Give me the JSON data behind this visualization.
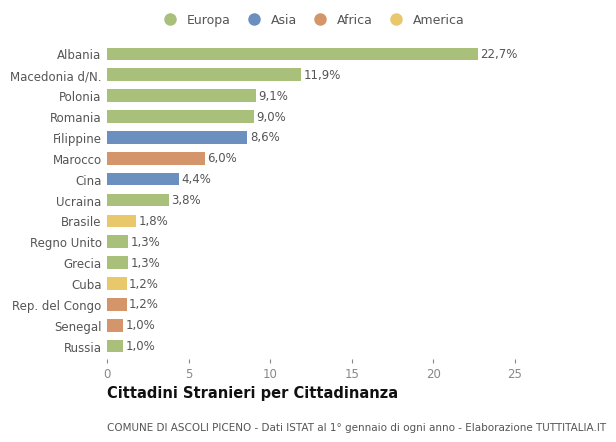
{
  "countries": [
    "Albania",
    "Macedonia d/N.",
    "Polonia",
    "Romania",
    "Filippine",
    "Marocco",
    "Cina",
    "Ucraina",
    "Brasile",
    "Regno Unito",
    "Grecia",
    "Cuba",
    "Rep. del Congo",
    "Senegal",
    "Russia"
  ],
  "values": [
    22.7,
    11.9,
    9.1,
    9.0,
    8.6,
    6.0,
    4.4,
    3.8,
    1.8,
    1.3,
    1.3,
    1.2,
    1.2,
    1.0,
    1.0
  ],
  "labels": [
    "22,7%",
    "11,9%",
    "9,1%",
    "9,0%",
    "8,6%",
    "6,0%",
    "4,4%",
    "3,8%",
    "1,8%",
    "1,3%",
    "1,3%",
    "1,2%",
    "1,2%",
    "1,0%",
    "1,0%"
  ],
  "continents": [
    "Europa",
    "Europa",
    "Europa",
    "Europa",
    "Asia",
    "Africa",
    "Asia",
    "Europa",
    "America",
    "Europa",
    "Europa",
    "America",
    "Africa",
    "Africa",
    "Europa"
  ],
  "continent_colors": {
    "Europa": "#a8c07a",
    "Asia": "#6b8fbe",
    "Africa": "#d4956a",
    "America": "#e8c86a"
  },
  "legend_order": [
    "Europa",
    "Asia",
    "Africa",
    "America"
  ],
  "title": "Cittadini Stranieri per Cittadinanza",
  "subtitle": "COMUNE DI ASCOLI PICENO - Dati ISTAT al 1° gennaio di ogni anno - Elaborazione TUTTITALIA.IT",
  "xlim": [
    0,
    25
  ],
  "xticks": [
    0,
    5,
    10,
    15,
    20,
    25
  ],
  "background_color": "#ffffff",
  "bar_height": 0.6,
  "label_fontsize": 8.5,
  "tick_fontsize": 8.5,
  "title_fontsize": 10.5,
  "subtitle_fontsize": 7.5
}
